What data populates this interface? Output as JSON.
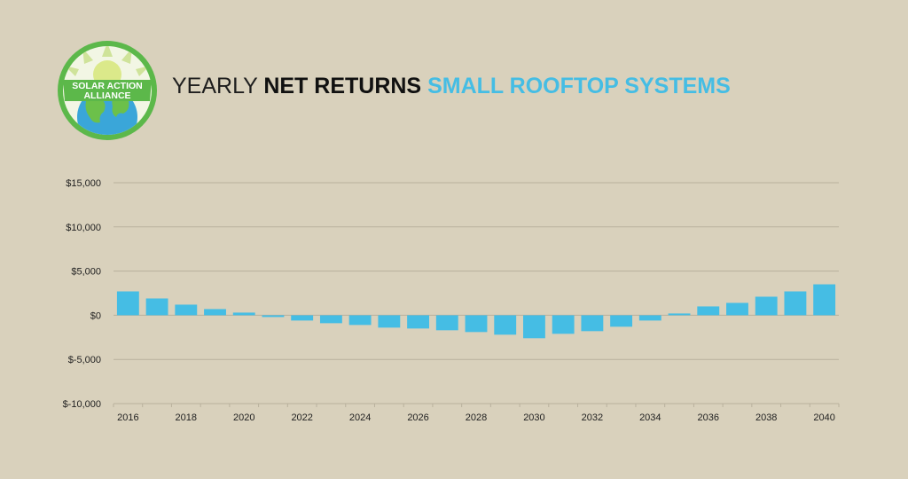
{
  "colors": {
    "background": "#d9d1bc",
    "bar": "#45bde4",
    "grid": "#b9b19d",
    "logo_green": "#5cb84a",
    "logo_blue": "#3aa6d9",
    "title_accent": "#45bde4"
  },
  "logo": {
    "line1": "SOLAR ACTION",
    "line2": "ALLIANCE"
  },
  "chart_data": {
    "type": "bar",
    "title": "YEARLY NET RETURNS SMALL ROOFTOP SYSTEMS",
    "title_parts": [
      "YEARLY",
      "NET RETURNS",
      "SMALL ROOFTOP SYSTEMS"
    ],
    "xlabel": "",
    "ylabel": "",
    "ylim": [
      -10000,
      15000
    ],
    "yticks": [
      15000,
      10000,
      5000,
      0,
      -5000,
      -10000
    ],
    "ytick_labels": [
      "$15,000",
      "$10,000",
      "$5,000",
      "$0",
      "$-5,000",
      "$-10,000"
    ],
    "xtick_labels": [
      "2016",
      "2018",
      "2020",
      "2022",
      "2024",
      "2026",
      "2028",
      "2030",
      "2032",
      "2034",
      "2036",
      "2038",
      "2040"
    ],
    "grid": true,
    "legend": "none",
    "categories": [
      "2016",
      "2017",
      "2018",
      "2019",
      "2020",
      "2021",
      "2022",
      "2023",
      "2024",
      "2025",
      "2026",
      "2027",
      "2028",
      "2029",
      "2030",
      "2031",
      "2032",
      "2033",
      "2034",
      "2035",
      "2036",
      "2037",
      "2038",
      "2039",
      "2040"
    ],
    "values": [
      2700,
      1900,
      1200,
      700,
      300,
      -200,
      -600,
      -900,
      -1100,
      -1400,
      -1500,
      -1700,
      -1900,
      -2200,
      -2600,
      -2100,
      -1800,
      -1300,
      -600,
      200,
      1000,
      1400,
      2100,
      2700,
      3500
    ]
  }
}
